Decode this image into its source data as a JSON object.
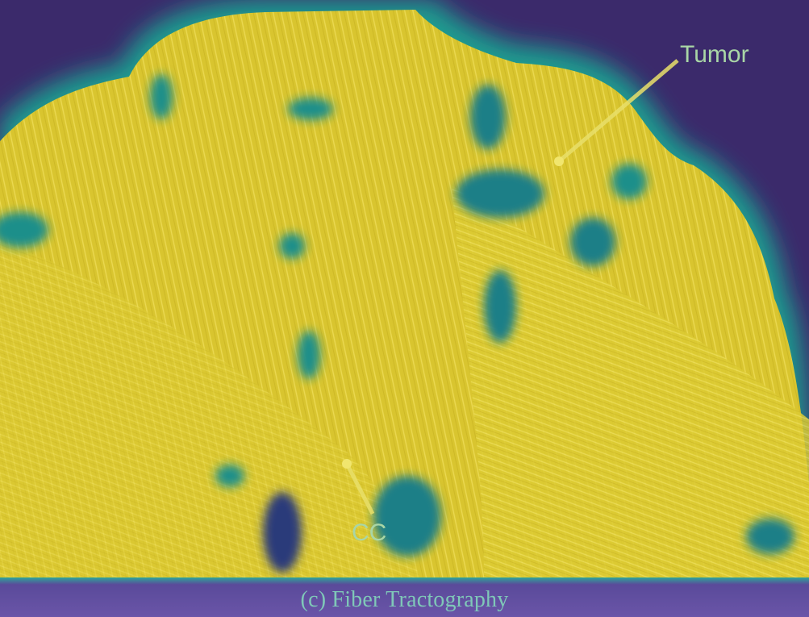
{
  "figure": {
    "caption": "(c)  Fiber Tractography",
    "annotations": {
      "tumor": "Tumor",
      "cc": "CC"
    },
    "colors": {
      "background": "#3b2a6b",
      "fiber": "#e3cf35",
      "edge": "#2ea59a",
      "annotation": "#a9d6a6"
    }
  }
}
